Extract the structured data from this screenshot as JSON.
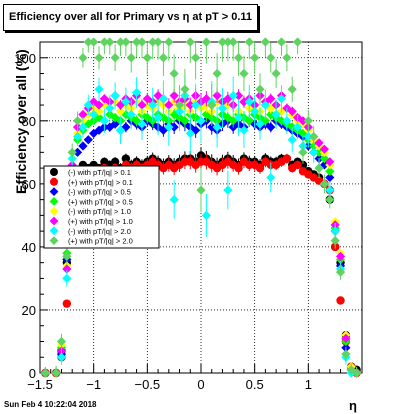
{
  "canvas": {
    "datestamp": "Sun Feb  4 10:22:04 2018"
  },
  "chart_data": {
    "type": "scatter",
    "title": "Efficiency over all for Primary vs   η at pT > 0.11",
    "xlabel": "η",
    "ylabel": "Efficiency over all (%)",
    "xlim": [
      -1.5,
      1.5
    ],
    "ylim": [
      0,
      105
    ],
    "x_ticks": [
      "-1.5",
      "-1",
      "-0.5",
      "0",
      "0.5",
      "1"
    ],
    "y_ticks": [
      "0",
      "20",
      "40",
      "60",
      "80",
      "100"
    ],
    "grid": true,
    "legend_placement": "middle-left",
    "x": [
      -1.45,
      -1.35,
      -1.3,
      -1.25,
      -1.2,
      -1.15,
      -1.1,
      -1.05,
      -1.0,
      -0.95,
      -0.9,
      -0.85,
      -0.8,
      -0.75,
      -0.7,
      -0.65,
      -0.6,
      -0.55,
      -0.5,
      -0.45,
      -0.4,
      -0.35,
      -0.3,
      -0.25,
      -0.2,
      -0.15,
      -0.1,
      -0.05,
      0.0,
      0.05,
      0.1,
      0.15,
      0.2,
      0.25,
      0.3,
      0.35,
      0.4,
      0.45,
      0.5,
      0.55,
      0.6,
      0.65,
      0.7,
      0.75,
      0.8,
      0.85,
      0.9,
      0.95,
      1.0,
      1.05,
      1.1,
      1.15,
      1.2,
      1.25,
      1.3,
      1.35,
      1.4,
      1.45
    ],
    "series": [
      {
        "name": "(-) with pT/|q| > 0.1",
        "color": "#000000",
        "values": [
          0,
          0,
          7,
          35,
          62,
          64,
          66,
          65,
          66,
          65,
          67,
          66,
          67,
          65,
          68,
          66,
          67,
          66,
          67,
          68,
          67,
          66,
          67,
          66,
          67,
          68,
          68,
          67,
          69,
          68,
          67,
          66,
          67,
          68,
          67,
          66,
          68,
          67,
          67,
          66,
          68,
          67,
          67,
          68,
          68,
          66,
          67,
          66,
          64,
          63,
          62,
          60,
          55,
          40,
          35,
          12,
          2,
          1
        ]
      },
      {
        "name": "(+) with pT/|q| > 0.1",
        "color": "#ff0000",
        "values": [
          0,
          0,
          5,
          22,
          60,
          62,
          63,
          64,
          64,
          63,
          65,
          64,
          65,
          64,
          66,
          65,
          66,
          65,
          66,
          67,
          66,
          65,
          66,
          65,
          66,
          67,
          67,
          66,
          67,
          67,
          66,
          65,
          66,
          67,
          66,
          65,
          67,
          66,
          66,
          65,
          67,
          66,
          66,
          67,
          68,
          65,
          66,
          64,
          63,
          62,
          61,
          60,
          58,
          40,
          23,
          10,
          2,
          0
        ]
      },
      {
        "name": "(-) with pT/|q| > 0.5",
        "color": "#0000ff",
        "values": [
          0,
          0,
          6,
          36,
          62,
          70,
          72,
          74,
          76,
          77,
          78,
          78,
          79,
          77,
          78,
          80,
          79,
          78,
          80,
          79,
          78,
          77,
          79,
          78,
          80,
          79,
          78,
          77,
          79,
          80,
          78,
          77,
          79,
          80,
          78,
          79,
          78,
          80,
          79,
          78,
          79,
          78,
          80,
          79,
          78,
          77,
          76,
          75,
          72,
          70,
          68,
          66,
          62,
          45,
          34,
          8,
          1,
          0
        ]
      },
      {
        "name": "(+) with pT/|q| > 0.5",
        "color": "#00ff00",
        "values": [
          0,
          0,
          8,
          38,
          64,
          74,
          77,
          79,
          80,
          81,
          80,
          82,
          81,
          80,
          82,
          81,
          80,
          82,
          81,
          80,
          82,
          81,
          80,
          82,
          81,
          80,
          82,
          81,
          80,
          82,
          81,
          80,
          82,
          81,
          80,
          82,
          81,
          80,
          82,
          81,
          80,
          82,
          81,
          80,
          79,
          78,
          77,
          76,
          74,
          72,
          70,
          68,
          64,
          46,
          36,
          10,
          1,
          0
        ]
      },
      {
        "name": "(-) with pT/|q| > 1.0",
        "color": "#ffff00",
        "values": [
          0,
          0,
          9,
          34,
          65,
          76,
          80,
          82,
          84,
          83,
          85,
          84,
          86,
          83,
          85,
          84,
          86,
          83,
          85,
          84,
          86,
          85,
          83,
          86,
          84,
          85,
          83,
          86,
          84,
          85,
          83,
          86,
          84,
          85,
          88,
          83,
          86,
          84,
          85,
          83,
          86,
          84,
          85,
          83,
          84,
          82,
          80,
          79,
          77,
          74,
          72,
          70,
          66,
          48,
          38,
          12,
          2,
          0
        ]
      },
      {
        "name": "(+) with pT/|q| > 1.0",
        "color": "#ff00ff",
        "values": [
          0,
          0,
          7,
          33,
          66,
          78,
          82,
          84,
          86,
          85,
          87,
          86,
          88,
          85,
          87,
          86,
          88,
          85,
          87,
          86,
          88,
          87,
          85,
          88,
          86,
          87,
          85,
          88,
          86,
          87,
          85,
          88,
          86,
          87,
          85,
          88,
          86,
          87,
          85,
          88,
          86,
          87,
          85,
          88,
          84,
          83,
          81,
          80,
          78,
          75,
          73,
          71,
          67,
          47,
          37,
          11,
          1,
          0
        ]
      },
      {
        "name": "(-) with pT/|q| > 2.0",
        "color": "#00ffff",
        "values": [
          0,
          0,
          5,
          30,
          68,
          75,
          78,
          85,
          82,
          90,
          80,
          84,
          88,
          77,
          86,
          82,
          89,
          79,
          60,
          85,
          81,
          87,
          78,
          55,
          83,
          88,
          76,
          85,
          80,
          50,
          86,
          78,
          84,
          58,
          88,
          81,
          77,
          86,
          83,
          79,
          85,
          62,
          82,
          87,
          80,
          74,
          78,
          72,
          75,
          70,
          65,
          60,
          58,
          45,
          33,
          5,
          0,
          0
        ]
      },
      {
        "name": "(+) with pT/|q| > 2.0",
        "color": "#5fd35f",
        "values": [
          0,
          0,
          10,
          37,
          70,
          80,
          100,
          105,
          105,
          100,
          105,
          105,
          100,
          105,
          105,
          100,
          105,
          105,
          100,
          105,
          105,
          100,
          105,
          95,
          85,
          90,
          105,
          100,
          58,
          105,
          85,
          95,
          105,
          105,
          105,
          100,
          95,
          105,
          100,
          90,
          105,
          100,
          95,
          105,
          100,
          90,
          105,
          70,
          80,
          75,
          65,
          60,
          55,
          42,
          32,
          6,
          1,
          0
        ]
      }
    ]
  }
}
